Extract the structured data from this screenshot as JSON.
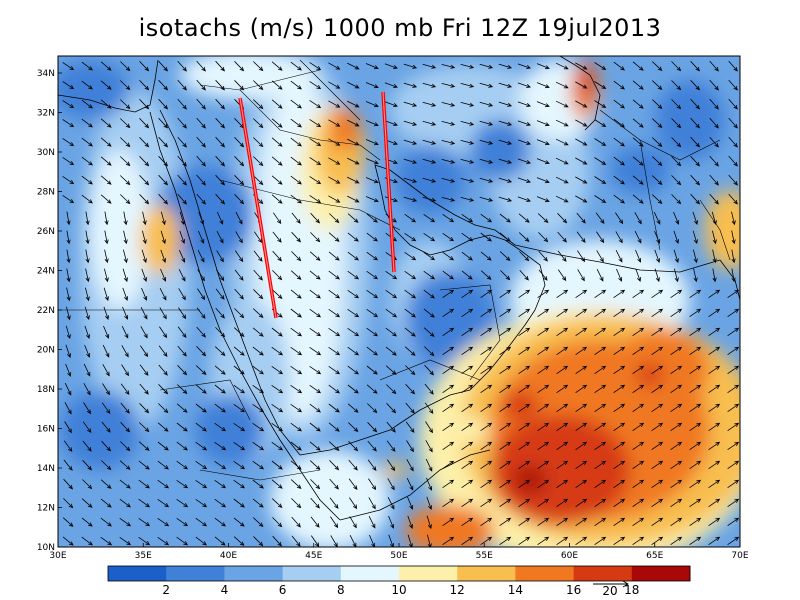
{
  "title": "isotachs (m/s) 1000 mb Fri 12Z 19jul2013",
  "lat_labels": [
    "10N",
    "12N",
    "14N",
    "16N",
    "18N",
    "20N",
    "22N",
    "24N",
    "26N",
    "28N",
    "30N",
    "32N",
    "34N"
  ],
  "lon_labels": [
    "30E",
    "35E",
    "40E",
    "45E",
    "50E",
    "55E",
    "60E",
    "65E",
    "70E"
  ],
  "colorbar": {
    "colors": [
      "#1a60c8",
      "#3f80d8",
      "#6aa4e4",
      "#a6cef2",
      "#e4f6fe",
      "#fdf0aa",
      "#f8be50",
      "#f07820",
      "#d63a12",
      "#a80808"
    ],
    "labels": [
      "2",
      "4",
      "6",
      "8",
      "10",
      "12",
      "14",
      "16",
      "18"
    ],
    "reference_vector_label": "20"
  },
  "colors": {
    "wind_arrow": "#000000",
    "coastline": "#000000",
    "annotation_line": "#ff0000"
  },
  "map_extent": {
    "lon": [
      30,
      70
    ],
    "lat": [
      10,
      35
    ]
  }
}
